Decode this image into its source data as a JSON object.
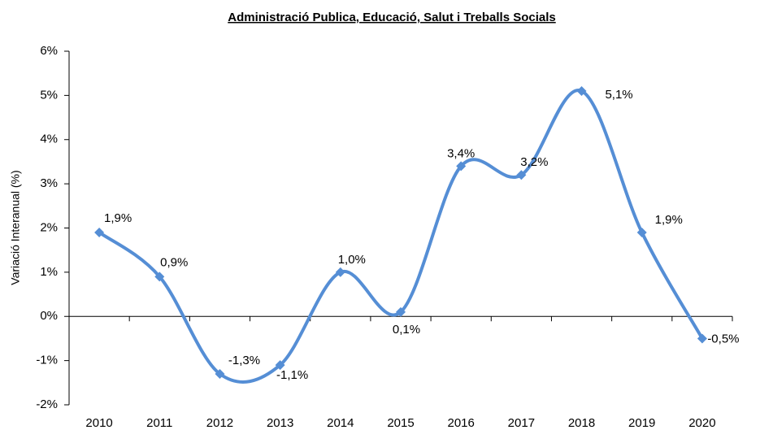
{
  "chart_data": {
    "type": "line",
    "title": "Administració Publica, Educació, Salut i Treballs Socials",
    "y_label": "Variació Interanual  (%)",
    "categories": [
      "2010",
      "2011",
      "2012",
      "2013",
      "2014",
      "2015",
      "2016",
      "2017",
      "2018",
      "2019",
      "2020"
    ],
    "series": [
      {
        "name": "Variació Interanual",
        "color": "#558ed5",
        "values": [
          1.9,
          0.9,
          -1.3,
          -1.1,
          1.0,
          0.1,
          3.4,
          3.2,
          5.1,
          1.9,
          -0.5
        ],
        "value_labels": [
          "1,9%",
          "0,9%",
          "-1,3%",
          "-1,1%",
          "1,0%",
          "0,1%",
          "3,4%",
          "3,2%",
          "5,1%",
          "1,9%",
          "-0,5%"
        ]
      }
    ],
    "ylim": [
      -2,
      6
    ],
    "yticks": [
      {
        "value": -2,
        "label": "-2%"
      },
      {
        "value": -1,
        "label": "-1%"
      },
      {
        "value": 0,
        "label": "0%"
      },
      {
        "value": 1,
        "label": "1%"
      },
      {
        "value": 2,
        "label": "2%"
      },
      {
        "value": 3,
        "label": "3%"
      },
      {
        "value": 4,
        "label": "4%"
      },
      {
        "value": 5,
        "label": "5%"
      },
      {
        "value": 6,
        "label": "6%"
      }
    ],
    "grid": false
  }
}
